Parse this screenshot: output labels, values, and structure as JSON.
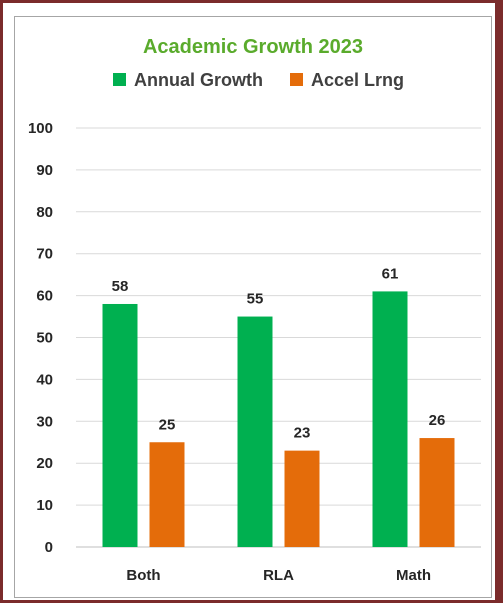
{
  "chart_data": {
    "type": "bar",
    "title": "Academic Growth 2023",
    "categories": [
      "Both",
      "RLA",
      "Math"
    ],
    "series": [
      {
        "name": "Annual Growth",
        "values": [
          58,
          55,
          61
        ],
        "color": "#00b050"
      },
      {
        "name": "Accel Lrng",
        "values": [
          25,
          23,
          26
        ],
        "color": "#e46c0a"
      }
    ],
    "ylim": [
      0,
      100
    ],
    "yticks": [
      0,
      10,
      20,
      30,
      40,
      50,
      60,
      70,
      80,
      90,
      100
    ],
    "grid": true,
    "legend": "top",
    "data_labels": true
  }
}
